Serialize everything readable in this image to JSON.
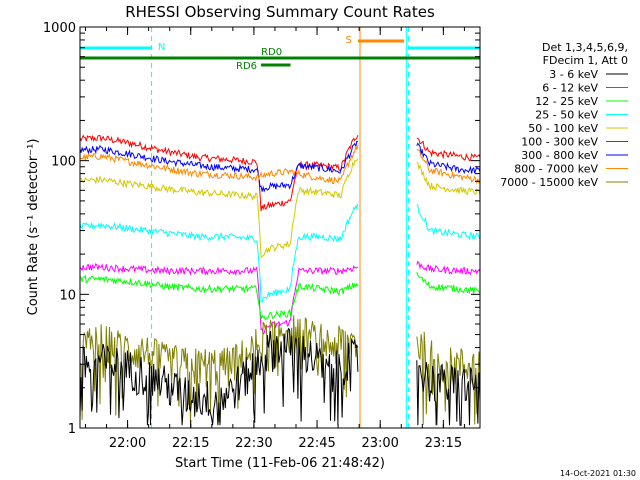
{
  "chart_data": {
    "type": "line",
    "title": "RHESSI Observing Summary Count Rates",
    "xlabel": "Start Time (11-Feb-06 21:48:42)",
    "ylabel": "Count Rate (s⁻¹ detector⁻¹)",
    "yscale": "log",
    "ylim": [
      1,
      1000
    ],
    "xlim_minutes_since_start": [
      0,
      95
    ],
    "x_ticks": [
      "22:00",
      "22:15",
      "22:30",
      "22:45",
      "23:00",
      "23:15"
    ],
    "y_ticks": [
      "1",
      "10",
      "100",
      "1000"
    ],
    "grid": false,
    "legend": {
      "position": "right",
      "header": [
        "Det 1,3,4,5,6,9,",
        "FDecim 1, Att 0"
      ],
      "entries": [
        {
          "label": "3 - 6 keV",
          "color": "#000000"
        },
        {
          "label": "6 - 12 keV",
          "color": "#ff00ff"
        },
        {
          "label": "12 - 25 keV",
          "color": "#00ff00"
        },
        {
          "label": "25 - 50 keV",
          "color": "#00ffff"
        },
        {
          "label": "50 - 100 keV",
          "color": "#d4c800"
        },
        {
          "label": "100 - 300 keV",
          "color": "#ff0000"
        },
        {
          "label": "300 - 800 keV",
          "color": "#0000ff"
        },
        {
          "label": "800 - 7000 keV",
          "color": "#ff8800"
        },
        {
          "label": "7000 - 15000 keV",
          "color": "#808000"
        }
      ]
    },
    "flag_bars": [
      {
        "label": "N",
        "color": "#00ffff",
        "segments": [
          [
            0,
            17
          ],
          [
            78,
            95
          ]
        ]
      },
      {
        "label": "S",
        "color": "#ff8800",
        "segments": [
          [
            66,
            77
          ]
        ]
      },
      {
        "label": "RD0",
        "color": "#008000",
        "segments": [
          [
            0,
            95
          ]
        ]
      },
      {
        "label": "RD6",
        "color": "#008000",
        "segments": [
          [
            43,
            50
          ]
        ]
      }
    ],
    "vertical_markers": [
      {
        "x": 17,
        "color": "#00ffff",
        "style": "dashed"
      },
      {
        "x": 78,
        "color": "#00ffff",
        "style": "dashed"
      },
      {
        "x": 95,
        "color": "#00ffff",
        "style": "dashed"
      },
      {
        "x": 66.5,
        "color": "#ff8800",
        "style": "solid"
      },
      {
        "x": 77.5,
        "color": "#00ffff",
        "style": "solid"
      }
    ],
    "series": [
      {
        "name": "100 - 300 keV",
        "color": "#ff0000",
        "x": [
          0,
          5,
          12,
          20,
          28,
          35,
          42,
          43,
          45,
          50,
          52,
          57,
          62,
          66,
          80,
          83,
          90,
          95
        ],
        "y": [
          145,
          148,
          135,
          118,
          106,
          102,
          98,
          44,
          46,
          50,
          93,
          92,
          88,
          160,
          150,
          115,
          108,
          104
        ]
      },
      {
        "name": "300 - 800 keV",
        "color": "#0000ff",
        "x": [
          0,
          5,
          12,
          20,
          28,
          35,
          42,
          43,
          45,
          50,
          52,
          57,
          62,
          66,
          80,
          83,
          90,
          95
        ],
        "y": [
          120,
          122,
          112,
          100,
          92,
          88,
          86,
          62,
          64,
          66,
          92,
          88,
          83,
          140,
          130,
          95,
          86,
          84
        ]
      },
      {
        "name": "800 - 7000 keV",
        "color": "#ff8800",
        "x": [
          0,
          5,
          12,
          20,
          28,
          35,
          42,
          45,
          50,
          52,
          57,
          62,
          66,
          80,
          83,
          90,
          95
        ],
        "y": [
          105,
          108,
          98,
          88,
          80,
          78,
          75,
          80,
          83,
          80,
          74,
          70,
          130,
          120,
          85,
          76,
          72
        ]
      },
      {
        "name": "50 - 100 keV",
        "color": "#d4c800",
        "x": [
          0,
          5,
          12,
          20,
          28,
          35,
          42,
          43,
          45,
          50,
          52,
          57,
          62,
          66,
          80,
          83,
          90,
          95
        ],
        "y": [
          71,
          72,
          67,
          62,
          58,
          56,
          54,
          20,
          22,
          24,
          60,
          58,
          55,
          110,
          95,
          65,
          60,
          58
        ]
      },
      {
        "name": "25 - 50 keV",
        "color": "#00ffff",
        "x": [
          0,
          5,
          12,
          20,
          28,
          35,
          42,
          43,
          45,
          50,
          52,
          57,
          62,
          66,
          80,
          83,
          90,
          95
        ],
        "y": [
          32,
          33,
          31,
          29,
          27,
          27,
          26,
          9,
          10,
          11,
          27,
          27,
          26,
          48,
          45,
          30,
          28,
          27
        ]
      },
      {
        "name": "6 - 12 keV",
        "color": "#ff00ff",
        "x": [
          0,
          5,
          12,
          20,
          28,
          35,
          42,
          43,
          45,
          50,
          52,
          57,
          62,
          66,
          80,
          83,
          90,
          95
        ],
        "y": [
          16,
          16,
          15.5,
          15,
          15,
          15,
          15,
          5.2,
          5.8,
          6.2,
          15,
          15,
          15,
          16,
          17,
          15.5,
          15,
          15
        ]
      },
      {
        "name": "12 - 25 keV",
        "color": "#00ff00",
        "x": [
          0,
          5,
          12,
          20,
          28,
          35,
          42,
          43,
          45,
          50,
          52,
          57,
          62,
          66,
          80,
          83,
          90,
          95
        ],
        "y": [
          13,
          13,
          12.5,
          11.5,
          11,
          11,
          11,
          6.5,
          7,
          7.2,
          11.5,
          11,
          10.5,
          12,
          14,
          11.5,
          11,
          10.5
        ]
      },
      {
        "name": "7000 - 15000 keV",
        "color": "#808000",
        "x": [
          0,
          5,
          10,
          15,
          20,
          25,
          30,
          35,
          40,
          45,
          50,
          55,
          60,
          64,
          80,
          83,
          88,
          95
        ],
        "y": [
          4,
          4.5,
          4,
          3.8,
          3.2,
          3,
          3,
          3,
          3.6,
          5.2,
          5.5,
          4.8,
          4.2,
          4.5,
          4.5,
          3.5,
          3,
          3
        ]
      },
      {
        "name": "3 - 6 keV",
        "color": "#000000",
        "x": [
          0,
          5,
          10,
          15,
          20,
          25,
          30,
          35,
          40,
          45,
          50,
          55,
          60,
          64,
          80,
          83,
          88,
          95
        ],
        "y": [
          3,
          3.2,
          3,
          2.6,
          2.2,
          1.8,
          1.7,
          1.8,
          2.6,
          4,
          4.2,
          3.5,
          2.6,
          3.5,
          3,
          2.3,
          2.2,
          2.2
        ]
      }
    ],
    "gaps": [
      [
        66,
        80
      ]
    ]
  },
  "footer": {
    "timestamp": "14-Oct-2021 01:30"
  }
}
